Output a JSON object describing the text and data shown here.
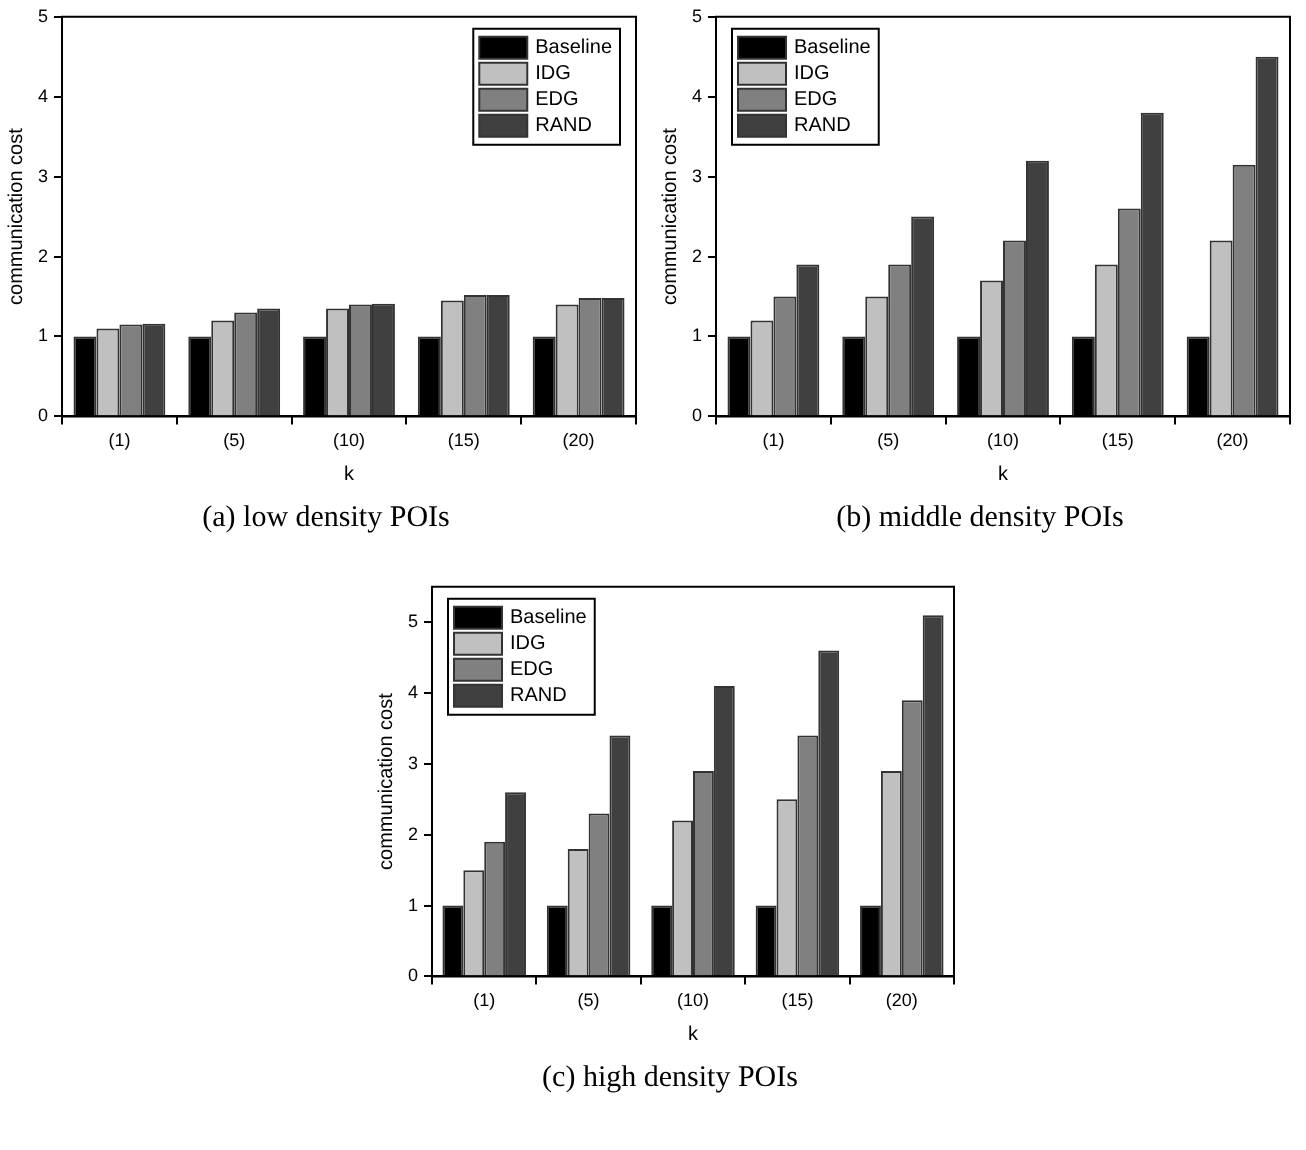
{
  "chart_data": [
    {
      "type": "bar",
      "title": "(a) low density POIs",
      "xlabel": "k",
      "ylabel": "communication cost",
      "categories": [
        "(1)",
        "(5)",
        "(10)",
        "(15)",
        "(20)"
      ],
      "ylim": [
        0,
        5
      ],
      "yticks": [
        0,
        1,
        2,
        3,
        4,
        5
      ],
      "legend": "top right",
      "grid": false,
      "series": [
        {
          "name": "Baseline",
          "color": "#000000",
          "values": [
            1,
            1,
            1,
            1,
            1
          ]
        },
        {
          "name": "IDG",
          "color": "#c0c0c0",
          "values": [
            1.1,
            1.2,
            1.35,
            1.45,
            1.4
          ]
        },
        {
          "name": "EDG",
          "color": "#808080",
          "values": [
            1.15,
            1.3,
            1.4,
            1.52,
            1.48
          ]
        },
        {
          "name": "RAND",
          "color": "#404040",
          "values": [
            1.16,
            1.35,
            1.41,
            1.52,
            1.48
          ]
        }
      ]
    },
    {
      "type": "bar",
      "title": "(b) middle density POIs",
      "xlabel": "k",
      "ylabel": "communication cost",
      "categories": [
        "(1)",
        "(5)",
        "(10)",
        "(15)",
        "(20)"
      ],
      "ylim": [
        0,
        5
      ],
      "yticks": [
        0,
        1,
        2,
        3,
        4,
        5
      ],
      "legend": "top left",
      "grid": false,
      "series": [
        {
          "name": "Baseline",
          "color": "#000000",
          "values": [
            1,
            1,
            1,
            1,
            1
          ]
        },
        {
          "name": "IDG",
          "color": "#c0c0c0",
          "values": [
            1.2,
            1.5,
            1.7,
            1.9,
            2.2
          ]
        },
        {
          "name": "EDG",
          "color": "#808080",
          "values": [
            1.5,
            1.9,
            2.2,
            2.6,
            3.15
          ]
        },
        {
          "name": "RAND",
          "color": "#404040",
          "values": [
            1.9,
            2.5,
            3.2,
            3.8,
            4.5
          ]
        }
      ]
    },
    {
      "type": "bar",
      "title": "(c) high density POIs",
      "xlabel": "k",
      "ylabel": "communication cost",
      "categories": [
        "(1)",
        "(5)",
        "(10)",
        "(15)",
        "(20)"
      ],
      "ylim": [
        0,
        5.5
      ],
      "yticks": [
        0,
        1,
        2,
        3,
        4,
        5
      ],
      "legend": "top left",
      "grid": false,
      "series": [
        {
          "name": "Baseline",
          "color": "#000000",
          "values": [
            1,
            1,
            1,
            1,
            1
          ]
        },
        {
          "name": "IDG",
          "color": "#c0c0c0",
          "values": [
            1.5,
            1.8,
            2.2,
            2.5,
            2.9
          ]
        },
        {
          "name": "EDG",
          "color": "#808080",
          "values": [
            1.9,
            2.3,
            2.9,
            3.4,
            3.9
          ]
        },
        {
          "name": "RAND",
          "color": "#404040",
          "values": [
            2.6,
            3.4,
            4.1,
            4.6,
            5.1
          ]
        }
      ]
    }
  ]
}
